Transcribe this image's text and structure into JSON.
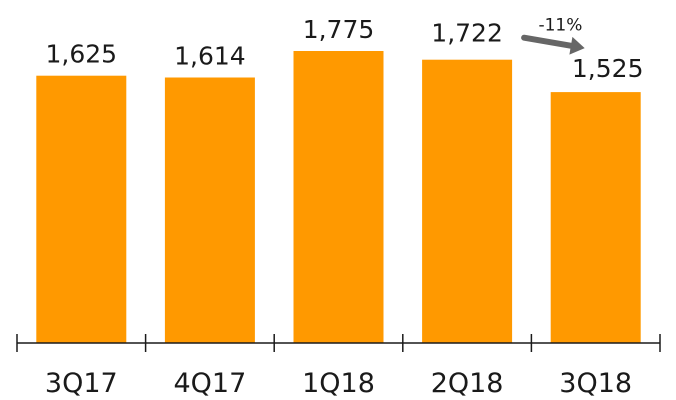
{
  "chart_data": {
    "type": "bar",
    "categories": [
      "3Q17",
      "4Q17",
      "1Q18",
      "2Q18",
      "3Q18"
    ],
    "values": [
      1625,
      1614,
      1775,
      1722,
      1525
    ],
    "value_labels": [
      "1,625",
      "1,614",
      "1,775",
      "1,722",
      "1,525"
    ],
    "ylim": [
      0,
      1775
    ],
    "grid": false,
    "bar_color": "#FF9900",
    "axis_color": "#1a1a1a",
    "annotation": {
      "text": "-11%",
      "from_category": "2Q18",
      "to_category": "3Q18",
      "arrow_color": "#666666"
    }
  }
}
